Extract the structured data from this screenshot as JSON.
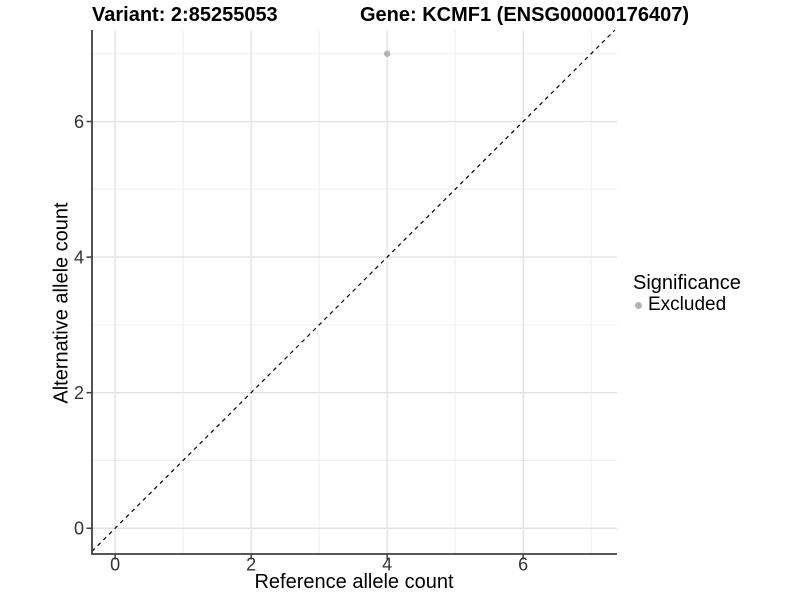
{
  "figure": {
    "title_variant": "Variant: 2:85255053",
    "title_gene": "Gene: KCMF1 (ENSG00000176407)"
  },
  "axes": {
    "x_label": "Reference allele count",
    "y_label": "Alternative allele count"
  },
  "legend": {
    "title": "Significance",
    "items": [
      {
        "label": "Excluded",
        "color": "#b4b4b4"
      }
    ]
  },
  "chart_data": {
    "type": "scatter",
    "title": "Variant: 2:85255053 | Gene: KCMF1 (ENSG00000176407)",
    "xlabel": "Reference allele count",
    "ylabel": "Alternative allele count",
    "xlim": [
      -0.34,
      7.38
    ],
    "ylim": [
      -0.38,
      7.35
    ],
    "x_major_ticks": [
      0,
      2,
      4,
      6
    ],
    "y_major_ticks": [
      0,
      2,
      4,
      6
    ],
    "x_minor_ticks": [
      1,
      3,
      5,
      7
    ],
    "y_minor_ticks": [
      1,
      3,
      5,
      7
    ],
    "series": [
      {
        "name": "Excluded",
        "color": "#b4b4b4",
        "points": [
          {
            "x": 4,
            "y": 7
          }
        ]
      }
    ],
    "reference_line": {
      "kind": "identity",
      "slope": 1,
      "intercept": 0,
      "style": "dashed",
      "color": "#000000"
    },
    "grid": true,
    "legend_position": "right",
    "panel_background": "#ffffff",
    "gridline_major_color": "#e3e3e3",
    "gridline_minor_color": "#efefef",
    "axis_line_color": "#404040",
    "tick_label_color": "#333333",
    "tick_label_font_px": 18,
    "point_radius_px": 3.2
  }
}
